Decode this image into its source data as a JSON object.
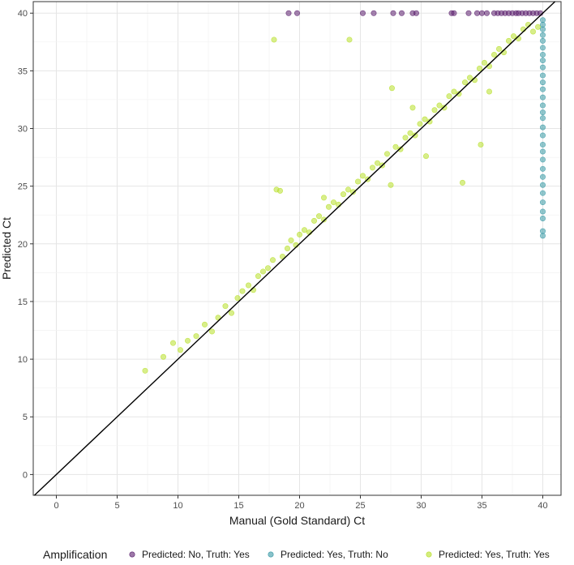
{
  "chart_data": {
    "type": "scatter",
    "xlabel": "Manual (Gold Standard) Ct",
    "ylabel": "Predicted Ct",
    "xlim": [
      -1.9,
      41.5
    ],
    "ylim": [
      -1.8,
      41.0
    ],
    "x_ticks": [
      0,
      5,
      10,
      15,
      20,
      25,
      30,
      35,
      40
    ],
    "y_ticks": [
      0,
      5,
      10,
      15,
      20,
      25,
      30,
      35,
      40
    ],
    "grid": true,
    "reference_line": "y = x",
    "legend": {
      "title": "Amplification",
      "placement": "bottom"
    },
    "series": [
      {
        "name": "Predicted: No, Truth: Yes",
        "color": "#5b1f6e",
        "points": [
          [
            19.1,
            40
          ],
          [
            19.8,
            40
          ],
          [
            25.2,
            40
          ],
          [
            26.1,
            40
          ],
          [
            27.7,
            40
          ],
          [
            28.4,
            40
          ],
          [
            29.3,
            40
          ],
          [
            29.6,
            40
          ],
          [
            32.5,
            40
          ],
          [
            32.7,
            40
          ],
          [
            33.9,
            40
          ],
          [
            34.6,
            40
          ],
          [
            35.0,
            40
          ],
          [
            35.4,
            40
          ],
          [
            36.0,
            40
          ],
          [
            36.3,
            40
          ],
          [
            36.6,
            40
          ],
          [
            36.9,
            40
          ],
          [
            37.2,
            40
          ],
          [
            37.5,
            40
          ],
          [
            37.8,
            40
          ],
          [
            38.0,
            40
          ],
          [
            38.3,
            40
          ],
          [
            38.6,
            40
          ],
          [
            38.9,
            40
          ],
          [
            39.2,
            40
          ],
          [
            39.5,
            40
          ],
          [
            39.8,
            40
          ]
        ]
      },
      {
        "name": "Predicted: Yes, Truth: No",
        "color": "#3a9aa6",
        "points": [
          [
            40,
            20.7
          ],
          [
            40,
            21.1
          ],
          [
            40,
            22.2
          ],
          [
            40,
            22.8
          ],
          [
            40,
            23.6
          ],
          [
            40,
            24.4
          ],
          [
            40,
            25.1
          ],
          [
            40,
            25.8
          ],
          [
            40,
            26.5
          ],
          [
            40,
            27.3
          ],
          [
            40,
            28.0
          ],
          [
            40,
            28.6
          ],
          [
            40,
            29.4
          ],
          [
            40,
            30.1
          ],
          [
            40,
            30.9
          ],
          [
            40,
            31.4
          ],
          [
            40,
            32.0
          ],
          [
            40,
            32.7
          ],
          [
            40,
            33.4
          ],
          [
            40,
            34.0
          ],
          [
            40,
            34.6
          ],
          [
            40,
            35.3
          ],
          [
            40,
            35.9
          ],
          [
            40,
            36.4
          ],
          [
            40,
            37.0
          ],
          [
            40,
            37.6
          ],
          [
            40,
            38.1
          ],
          [
            40,
            38.6
          ],
          [
            40,
            39.0
          ],
          [
            40,
            39.4
          ]
        ]
      },
      {
        "name": "Predicted: Yes, Truth: Yes",
        "color": "#b8e02a",
        "points": [
          [
            7.3,
            9.0
          ],
          [
            8.8,
            10.2
          ],
          [
            9.6,
            11.4
          ],
          [
            10.2,
            10.8
          ],
          [
            10.8,
            11.6
          ],
          [
            11.5,
            12.0
          ],
          [
            12.2,
            13.0
          ],
          [
            12.8,
            12.4
          ],
          [
            13.3,
            13.6
          ],
          [
            13.9,
            14.6
          ],
          [
            14.4,
            14.0
          ],
          [
            14.9,
            15.3
          ],
          [
            15.3,
            15.9
          ],
          [
            15.8,
            16.4
          ],
          [
            16.2,
            16.0
          ],
          [
            16.6,
            17.2
          ],
          [
            17.0,
            17.6
          ],
          [
            17.4,
            17.9
          ],
          [
            17.8,
            18.6
          ],
          [
            18.1,
            24.7
          ],
          [
            18.4,
            24.6
          ],
          [
            18.6,
            18.9
          ],
          [
            19.0,
            19.6
          ],
          [
            19.3,
            20.3
          ],
          [
            19.7,
            19.9
          ],
          [
            20.0,
            20.8
          ],
          [
            20.4,
            21.2
          ],
          [
            20.8,
            21.0
          ],
          [
            21.2,
            22.0
          ],
          [
            21.6,
            22.4
          ],
          [
            22.0,
            22.1
          ],
          [
            22.4,
            23.2
          ],
          [
            22.8,
            23.6
          ],
          [
            23.2,
            23.4
          ],
          [
            23.6,
            24.3
          ],
          [
            24.0,
            24.7
          ],
          [
            24.4,
            24.5
          ],
          [
            24.8,
            25.4
          ],
          [
            25.2,
            25.9
          ],
          [
            25.6,
            25.6
          ],
          [
            26.0,
            26.6
          ],
          [
            26.4,
            27.0
          ],
          [
            26.8,
            26.8
          ],
          [
            27.2,
            27.8
          ],
          [
            27.6,
            33.5
          ],
          [
            27.9,
            28.4
          ],
          [
            28.3,
            28.2
          ],
          [
            28.7,
            29.2
          ],
          [
            29.1,
            29.6
          ],
          [
            29.5,
            29.4
          ],
          [
            29.9,
            30.4
          ],
          [
            30.3,
            30.8
          ],
          [
            30.7,
            30.6
          ],
          [
            31.1,
            31.6
          ],
          [
            31.5,
            32.0
          ],
          [
            31.9,
            31.8
          ],
          [
            32.3,
            32.8
          ],
          [
            32.7,
            33.2
          ],
          [
            33.1,
            33.0
          ],
          [
            33.4,
            25.3
          ],
          [
            33.6,
            34.0
          ],
          [
            34.0,
            34.4
          ],
          [
            34.4,
            34.2
          ],
          [
            34.8,
            35.2
          ],
          [
            35.2,
            35.7
          ],
          [
            35.6,
            35.4
          ],
          [
            36.0,
            36.4
          ],
          [
            36.4,
            36.9
          ],
          [
            36.8,
            36.6
          ],
          [
            37.2,
            37.6
          ],
          [
            37.6,
            38.0
          ],
          [
            38.0,
            37.8
          ],
          [
            38.4,
            38.6
          ],
          [
            38.8,
            39.0
          ],
          [
            39.2,
            38.4
          ],
          [
            39.6,
            38.8
          ],
          [
            17.9,
            37.7
          ],
          [
            24.1,
            37.7
          ],
          [
            30.4,
            27.6
          ],
          [
            34.9,
            28.6
          ],
          [
            29.3,
            31.8
          ],
          [
            27.5,
            25.1
          ],
          [
            35.6,
            33.2
          ],
          [
            22.0,
            24.0
          ]
        ]
      }
    ]
  }
}
